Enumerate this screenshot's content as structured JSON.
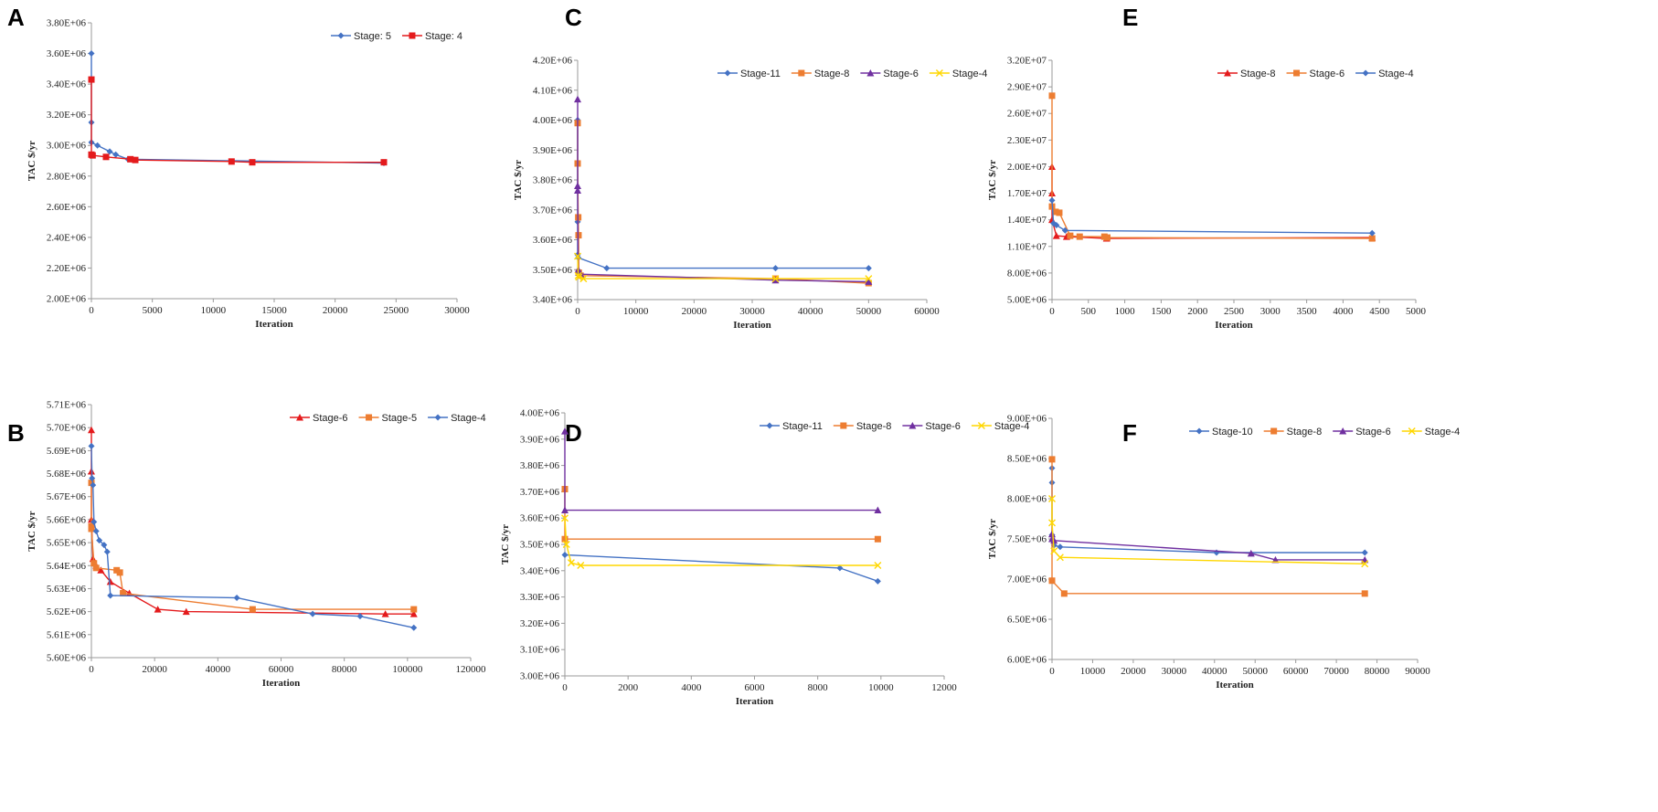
{
  "figure": {
    "panel_letters": [
      "A",
      "B",
      "C",
      "D",
      "E",
      "F"
    ]
  },
  "chart_data": [
    {
      "panel": "A",
      "type": "line",
      "title": "",
      "xlabel": "Iteration",
      "ylabel": "TAC $/yr",
      "xlim": [
        0,
        30000
      ],
      "ylim": [
        2000000,
        3800000
      ],
      "xticks": [
        0,
        5000,
        10000,
        15000,
        20000,
        25000,
        30000
      ],
      "xtick_labels": [
        "0",
        "5000",
        "10000",
        "15000",
        "20000",
        "25000",
        "30000"
      ],
      "yticks": [
        2000000,
        2200000,
        2400000,
        2600000,
        2800000,
        3000000,
        3200000,
        3400000,
        3600000,
        3800000
      ],
      "ytick_labels": [
        "2.00E+06",
        "2.20E+06",
        "2.40E+06",
        "2.60E+06",
        "2.80E+06",
        "3.00E+06",
        "3.20E+06",
        "3.40E+06",
        "3.60E+06",
        "3.80E+06"
      ],
      "legend_position": "top-right",
      "series": [
        {
          "name": "Stage: 5",
          "color": "#4472C4",
          "marker": "diamond",
          "x": [
            0,
            0,
            0,
            500,
            1500,
            2000,
            3000,
            24000
          ],
          "y": [
            3600000,
            3150000,
            3020000,
            3000000,
            2960000,
            2940000,
            2910000,
            2885000
          ]
        },
        {
          "name": "Stage: 4",
          "color": "#E41A1C",
          "marker": "square",
          "x": [
            0,
            0,
            100,
            1200,
            3200,
            3600,
            11500,
            13200,
            24000
          ],
          "y": [
            3430000,
            2940000,
            2935000,
            2925000,
            2910000,
            2905000,
            2895000,
            2890000,
            2890000
          ]
        }
      ]
    },
    {
      "panel": "B",
      "type": "line",
      "title": "",
      "xlabel": "Iteration",
      "ylabel": "TAC $/yr",
      "xlim": [
        0,
        120000
      ],
      "ylim": [
        5600000,
        5710000
      ],
      "xticks": [
        0,
        20000,
        40000,
        60000,
        80000,
        100000,
        120000
      ],
      "xtick_labels": [
        "0",
        "20000",
        "40000",
        "60000",
        "80000",
        "100000",
        "120000"
      ],
      "yticks": [
        5600000,
        5610000,
        5620000,
        5630000,
        5640000,
        5650000,
        5660000,
        5670000,
        5680000,
        5690000,
        5700000,
        5710000
      ],
      "ytick_labels": [
        "5.60E+06",
        "5.61E+06",
        "5.62E+06",
        "5.63E+06",
        "5.64E+06",
        "5.65E+06",
        "5.66E+06",
        "5.67E+06",
        "5.68E+06",
        "5.69E+06",
        "5.70E+06",
        "5.71E+06"
      ],
      "legend_position": "top-right",
      "series": [
        {
          "name": "Stage-6",
          "color": "#E41A1C",
          "marker": "triangle",
          "x": [
            0,
            0,
            0,
            500,
            1500,
            3000,
            6000,
            12000,
            21000,
            30000,
            93000,
            102000
          ],
          "y": [
            5699000,
            5681000,
            5660000,
            5643000,
            5640000,
            5638000,
            5633000,
            5628000,
            5621000,
            5620000,
            5619000,
            5619000
          ]
        },
        {
          "name": "Stage-5",
          "color": "#ED7D31",
          "marker": "square",
          "x": [
            0,
            0,
            0,
            800,
            1500,
            8000,
            9000,
            10000,
            51000,
            102000
          ],
          "y": [
            5676000,
            5657000,
            5656000,
            5641000,
            5639000,
            5638000,
            5637000,
            5628000,
            5621000,
            5621000
          ]
        },
        {
          "name": "Stage-4",
          "color": "#4472C4",
          "marker": "diamond",
          "x": [
            0,
            200,
            500,
            800,
            1500,
            2500,
            4000,
            5000,
            6000,
            46000,
            70000,
            85000,
            102000
          ],
          "y": [
            5692000,
            5678000,
            5675000,
            5659000,
            5655000,
            5651000,
            5649000,
            5646000,
            5627000,
            5626000,
            5619000,
            5618000,
            5613000
          ]
        }
      ]
    },
    {
      "panel": "C",
      "type": "line",
      "title": "",
      "xlabel": "Iteration",
      "ylabel": "TAC $/yr",
      "xlim": [
        0,
        60000
      ],
      "ylim": [
        3400000,
        4200000
      ],
      "xticks": [
        0,
        10000,
        20000,
        30000,
        40000,
        50000,
        60000
      ],
      "xtick_labels": [
        "0",
        "10000",
        "20000",
        "30000",
        "40000",
        "50000",
        "60000"
      ],
      "yticks": [
        3400000,
        3500000,
        3600000,
        3700000,
        3800000,
        3900000,
        4000000,
        4100000,
        4200000
      ],
      "ytick_labels": [
        "3.40E+06",
        "3.50E+06",
        "3.60E+06",
        "3.70E+06",
        "3.80E+06",
        "3.90E+06",
        "4.00E+06",
        "4.10E+06",
        "4.20E+06"
      ],
      "legend_position": "top-right",
      "series": [
        {
          "name": "Stage-11",
          "color": "#4472C4",
          "marker": "diamond",
          "x": [
            0,
            0,
            0,
            100,
            5000,
            34000,
            50000
          ],
          "y": [
            4000000,
            3660000,
            3550000,
            3540000,
            3505000,
            3505000,
            3505000
          ]
        },
        {
          "name": "Stage-8",
          "color": "#ED7D31",
          "marker": "square",
          "x": [
            0,
            0,
            100,
            150,
            200,
            500,
            34000,
            50000
          ],
          "y": [
            3990000,
            3855000,
            3675000,
            3615000,
            3490000,
            3480000,
            3470000,
            3455000
          ]
        },
        {
          "name": "Stage-6",
          "color": "#7030A0",
          "marker": "triangle",
          "x": [
            0,
            0,
            0,
            100,
            200,
            500,
            34000,
            50000
          ],
          "y": [
            4070000,
            3780000,
            3765000,
            3500000,
            3490000,
            3485000,
            3465000,
            3460000
          ]
        },
        {
          "name": "Stage-4",
          "color": "#FFD700",
          "marker": "x",
          "x": [
            0,
            100,
            200,
            1000,
            34000,
            50000
          ],
          "y": [
            3545000,
            3480000,
            3475000,
            3470000,
            3470000,
            3470000
          ]
        }
      ]
    },
    {
      "panel": "D",
      "type": "line",
      "title": "",
      "xlabel": "Iteration",
      "ylabel": "TAC $/yr",
      "xlim": [
        0,
        12000
      ],
      "ylim": [
        3000000,
        4000000
      ],
      "xticks": [
        0,
        2000,
        4000,
        6000,
        8000,
        10000,
        12000
      ],
      "xtick_labels": [
        "0",
        "2000",
        "4000",
        "6000",
        "8000",
        "10000",
        "12000"
      ],
      "yticks": [
        3000000,
        3100000,
        3200000,
        3300000,
        3400000,
        3500000,
        3600000,
        3700000,
        3800000,
        3900000,
        4000000
      ],
      "ytick_labels": [
        "3.00E+06",
        "3.10E+06",
        "3.20E+06",
        "3.30E+06",
        "3.40E+06",
        "3.50E+06",
        "3.60E+06",
        "3.70E+06",
        "3.80E+06",
        "3.90E+06",
        "4.00E+06"
      ],
      "legend_position": "top-right",
      "series": [
        {
          "name": "Stage-11",
          "color": "#4472C4",
          "marker": "diamond",
          "x": [
            0,
            8700,
            9900
          ],
          "y": [
            3460000,
            3410000,
            3360000
          ]
        },
        {
          "name": "Stage-8",
          "color": "#ED7D31",
          "marker": "square",
          "x": [
            0,
            0,
            9900
          ],
          "y": [
            3710000,
            3520000,
            3520000
          ]
        },
        {
          "name": "Stage-6",
          "color": "#7030A0",
          "marker": "triangle",
          "x": [
            0,
            0,
            9900
          ],
          "y": [
            3930000,
            3630000,
            3630000
          ]
        },
        {
          "name": "Stage-4",
          "color": "#FFD700",
          "marker": "x",
          "x": [
            0,
            50,
            200,
            500,
            9900
          ],
          "y": [
            3600000,
            3500000,
            3430000,
            3420000,
            3420000
          ]
        }
      ]
    },
    {
      "panel": "E",
      "type": "line",
      "title": "",
      "xlabel": "Iteration",
      "ylabel": "TAC $/yr",
      "xlim": [
        0,
        5000
      ],
      "ylim": [
        5000000,
        32000000
      ],
      "xticks": [
        0,
        500,
        1000,
        1500,
        2000,
        2500,
        3000,
        3500,
        4000,
        4500,
        5000
      ],
      "xtick_labels": [
        "0",
        "500",
        "1000",
        "1500",
        "2000",
        "2500",
        "3000",
        "3500",
        "4000",
        "4500",
        "5000"
      ],
      "yticks": [
        5000000,
        8000000,
        11000000,
        14000000,
        17000000,
        20000000,
        23000000,
        26000000,
        29000000,
        32000000
      ],
      "ytick_labels": [
        "5.00E+06",
        "8.00E+06",
        "1.10E+07",
        "1.40E+07",
        "1.70E+07",
        "2.00E+07",
        "2.30E+07",
        "2.60E+07",
        "2.90E+07",
        "3.20E+07"
      ],
      "legend_position": "top-right",
      "series": [
        {
          "name": "Stage-8",
          "color": "#E41A1C",
          "marker": "triangle",
          "x": [
            0,
            0,
            0,
            60,
            200,
            750,
            4400
          ],
          "y": [
            20000000,
            17000000,
            14000000,
            12200000,
            12100000,
            11900000,
            12000000
          ]
        },
        {
          "name": "Stage-6",
          "color": "#ED7D31",
          "marker": "square",
          "x": [
            0,
            0,
            50,
            100,
            250,
            380,
            720,
            760,
            4400
          ],
          "y": [
            28000000,
            15500000,
            14900000,
            14800000,
            12200000,
            12100000,
            12100000,
            12000000,
            11900000
          ]
        },
        {
          "name": "Stage-4",
          "color": "#4472C4",
          "marker": "diamond",
          "x": [
            0,
            20,
            60,
            180,
            4400
          ],
          "y": [
            16200000,
            13600000,
            13400000,
            12800000,
            12500000
          ]
        }
      ]
    },
    {
      "panel": "F",
      "type": "line",
      "title": "",
      "xlabel": "Iteration",
      "ylabel": "TAC $/yr",
      "xlim": [
        0,
        90000
      ],
      "ylim": [
        6000000,
        9000000
      ],
      "xticks": [
        0,
        10000,
        20000,
        30000,
        40000,
        50000,
        60000,
        70000,
        80000,
        90000
      ],
      "xtick_labels": [
        "0",
        "10000",
        "20000",
        "30000",
        "40000",
        "50000",
        "60000",
        "70000",
        "80000",
        "90000"
      ],
      "yticks": [
        6000000,
        6500000,
        7000000,
        7500000,
        8000000,
        8500000,
        9000000
      ],
      "ytick_labels": [
        "6.00E+06",
        "6.50E+06",
        "7.00E+06",
        "7.50E+06",
        "8.00E+06",
        "8.50E+06",
        "9.00E+06"
      ],
      "legend_position": "top-right",
      "series": [
        {
          "name": "Stage-10",
          "color": "#4472C4",
          "marker": "diamond",
          "x": [
            0,
            0,
            0,
            500,
            2000,
            40500,
            77000
          ],
          "y": [
            8380000,
            8200000,
            7550000,
            7420000,
            7400000,
            7330000,
            7330000
          ]
        },
        {
          "name": "Stage-8",
          "color": "#ED7D31",
          "marker": "square",
          "x": [
            0,
            0,
            3000,
            77000
          ],
          "y": [
            8490000,
            6980000,
            6820000,
            6820000
          ]
        },
        {
          "name": "Stage-6",
          "color": "#7030A0",
          "marker": "triangle",
          "x": [
            0,
            0,
            500,
            49000,
            55000,
            77000
          ],
          "y": [
            7560000,
            7500000,
            7480000,
            7320000,
            7240000,
            7240000
          ]
        },
        {
          "name": "Stage-4",
          "color": "#FFD700",
          "marker": "x",
          "x": [
            0,
            0,
            500,
            2000,
            77000
          ],
          "y": [
            8000000,
            7700000,
            7350000,
            7270000,
            7190000
          ]
        }
      ]
    }
  ]
}
